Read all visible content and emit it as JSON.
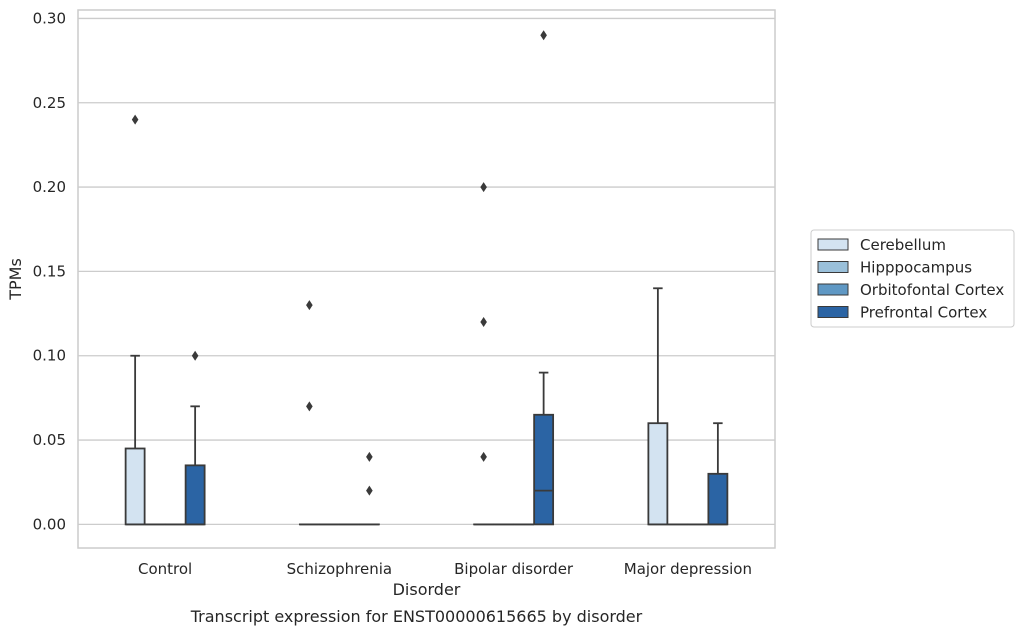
{
  "chart_data": {
    "type": "box",
    "caption": "Transcript expression for ENST00000615665 by disorder",
    "xlabel": "Disorder",
    "ylabel": "TPMs",
    "ylim": [
      -0.014,
      0.305
    ],
    "yticks": [
      "0.00",
      "0.05",
      "0.10",
      "0.15",
      "0.20",
      "0.25",
      "0.30"
    ],
    "ytick_values": [
      0,
      0.05,
      0.1,
      0.15,
      0.2,
      0.25,
      0.3
    ],
    "grid": "horizontal",
    "legend_position": "right",
    "categories": [
      "Control",
      "Schizophrenia",
      "Bipolar disorder",
      "Major depression"
    ],
    "series": [
      {
        "name": "Cerebellum",
        "color": "#d3e3f1",
        "boxes": [
          {
            "q1": 0,
            "median": 0,
            "q3": 0.045,
            "whisker_low": 0,
            "whisker_high": 0.1,
            "outliers": [
              0.24
            ]
          },
          {
            "q1": 0,
            "median": 0,
            "q3": 0,
            "whisker_low": 0,
            "whisker_high": 0,
            "outliers": [
              0.13,
              0.07
            ]
          },
          {
            "q1": 0,
            "median": 0,
            "q3": 0,
            "whisker_low": 0,
            "whisker_high": 0,
            "outliers": [
              0.2,
              0.12,
              0.04
            ]
          },
          {
            "q1": 0,
            "median": 0,
            "q3": 0.06,
            "whisker_low": 0,
            "whisker_high": 0.14,
            "outliers": []
          }
        ]
      },
      {
        "name": "Hipppocampus",
        "color": "#9ac0da",
        "boxes": [
          {
            "q1": 0,
            "median": 0,
            "q3": 0,
            "whisker_low": 0,
            "whisker_high": 0,
            "outliers": []
          },
          {
            "q1": 0,
            "median": 0,
            "q3": 0,
            "whisker_low": 0,
            "whisker_high": 0,
            "outliers": []
          },
          {
            "q1": 0,
            "median": 0,
            "q3": 0,
            "whisker_low": 0,
            "whisker_high": 0,
            "outliers": []
          },
          {
            "q1": 0,
            "median": 0,
            "q3": 0,
            "whisker_low": 0,
            "whisker_high": 0,
            "outliers": []
          }
        ]
      },
      {
        "name": "Orbitofontal Cortex",
        "color": "#5f98c4",
        "boxes": [
          {
            "q1": 0,
            "median": 0,
            "q3": 0,
            "whisker_low": 0,
            "whisker_high": 0,
            "outliers": []
          },
          {
            "q1": 0,
            "median": 0,
            "q3": 0,
            "whisker_low": 0,
            "whisker_high": 0,
            "outliers": []
          },
          {
            "q1": 0,
            "median": 0,
            "q3": 0,
            "whisker_low": 0,
            "whisker_high": 0,
            "outliers": []
          },
          {
            "q1": 0,
            "median": 0,
            "q3": 0,
            "whisker_low": 0,
            "whisker_high": 0,
            "outliers": []
          }
        ]
      },
      {
        "name": "Prefrontal Cortex",
        "color": "#2b64a4",
        "boxes": [
          {
            "q1": 0,
            "median": 0,
            "q3": 0.035,
            "whisker_low": 0,
            "whisker_high": 0.07,
            "outliers": [
              0.1
            ]
          },
          {
            "q1": 0,
            "median": 0,
            "q3": 0,
            "whisker_low": 0,
            "whisker_high": 0,
            "outliers": [
              0.04,
              0.02
            ]
          },
          {
            "q1": 0,
            "median": 0.02,
            "q3": 0.065,
            "whisker_low": 0,
            "whisker_high": 0.09,
            "outliers": [
              0.29
            ]
          },
          {
            "q1": 0,
            "median": 0,
            "q3": 0.03,
            "whisker_low": 0,
            "whisker_high": 0.06,
            "outliers": []
          }
        ]
      }
    ]
  }
}
